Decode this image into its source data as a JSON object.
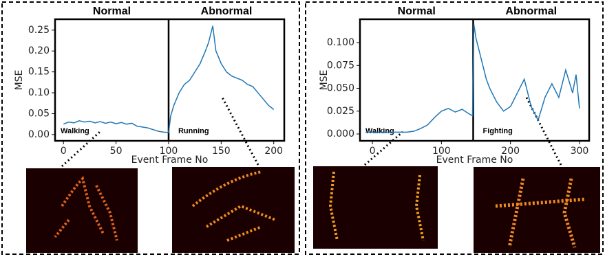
{
  "chart_data": [
    {
      "type": "line",
      "section_labels": [
        "Normal",
        "Abnormal"
      ],
      "split_x": 100,
      "ylabel": "MSE",
      "xlabel": "Event Frame No",
      "annotations": [
        "Walking",
        "Running"
      ],
      "xlim": [
        -8,
        210
      ],
      "ylim": [
        -0.015,
        0.276
      ],
      "xticks": [
        0,
        50,
        100,
        150,
        200
      ],
      "yticks": [
        {
          "value": 0,
          "label": "0.00"
        },
        {
          "value": 0.05,
          "label": "0.05"
        },
        {
          "value": 0.1,
          "label": "0.10"
        },
        {
          "value": 0.15,
          "label": "0.15"
        },
        {
          "value": 0.2,
          "label": "0.20"
        },
        {
          "value": 0.25,
          "label": "0.25"
        }
      ],
      "series": [
        {
          "color": "#1f77b4",
          "x": [
            0,
            5,
            10,
            15,
            20,
            25,
            30,
            35,
            40,
            45,
            50,
            55,
            60,
            65,
            70,
            75,
            80,
            85,
            90,
            95,
            100,
            102,
            105,
            110,
            115,
            120,
            125,
            130,
            135,
            138,
            142,
            145,
            150,
            155,
            160,
            165,
            170,
            175,
            180,
            185,
            190,
            195,
            200
          ],
          "values": [
            0.025,
            0.03,
            0.028,
            0.033,
            0.03,
            0.032,
            0.028,
            0.031,
            0.027,
            0.03,
            0.026,
            0.029,
            0.025,
            0.027,
            0.02,
            0.018,
            0.016,
            0.012,
            0.008,
            0.006,
            0.005,
            0.045,
            0.07,
            0.1,
            0.12,
            0.13,
            0.15,
            0.17,
            0.2,
            0.22,
            0.26,
            0.2,
            0.17,
            0.15,
            0.14,
            0.135,
            0.13,
            0.12,
            0.115,
            0.1,
            0.085,
            0.07,
            0.06
          ]
        }
      ]
    },
    {
      "type": "line",
      "section_labels": [
        "Normal",
        "Abnormal"
      ],
      "split_x": 146,
      "ylabel": "MSE",
      "xlabel": "Event Frame No",
      "annotations": [
        "Walking",
        "Fighting"
      ],
      "xlim": [
        -18,
        314
      ],
      "ylim": [
        -0.0075,
        0.1256
      ],
      "xticks": [
        0,
        100,
        200,
        300
      ],
      "yticks": [
        {
          "value": 0,
          "label": "0.000"
        },
        {
          "value": 0.025,
          "label": "0.025"
        },
        {
          "value": 0.05,
          "label": "0.050"
        },
        {
          "value": 0.075,
          "label": "0.075"
        },
        {
          "value": 0.1,
          "label": "0.100"
        }
      ],
      "series": [
        {
          "color": "#1f77b4",
          "x": [
            -10,
            0,
            10,
            20,
            30,
            40,
            50,
            60,
            70,
            80,
            90,
            100,
            110,
            120,
            130,
            140,
            145,
            147,
            150,
            155,
            160,
            165,
            170,
            180,
            190,
            200,
            210,
            220,
            230,
            240,
            250,
            260,
            270,
            280,
            290,
            295,
            300
          ],
          "values": [
            0.002,
            0.002,
            0.002,
            0.002,
            0.002,
            0.002,
            0.002,
            0.003,
            0.006,
            0.01,
            0.018,
            0.025,
            0.028,
            0.024,
            0.027,
            0.022,
            0.02,
            0.12,
            0.105,
            0.09,
            0.075,
            0.06,
            0.05,
            0.035,
            0.025,
            0.03,
            0.045,
            0.06,
            0.03,
            0.015,
            0.04,
            0.055,
            0.04,
            0.07,
            0.045,
            0.065,
            0.028
          ]
        }
      ]
    }
  ]
}
